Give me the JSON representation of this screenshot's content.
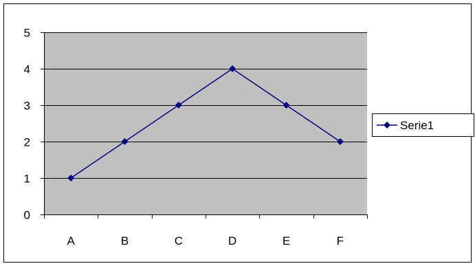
{
  "chart_data": {
    "type": "line",
    "categories": [
      "A",
      "B",
      "C",
      "D",
      "E",
      "F"
    ],
    "series": [
      {
        "name": "Serie1",
        "values": [
          1,
          2,
          3,
          4,
          3,
          2
        ]
      }
    ],
    "ylim": [
      0,
      5
    ],
    "yticks": [
      "0",
      "1",
      "2",
      "3",
      "4",
      "5"
    ],
    "grid": true,
    "legend": "right",
    "title": "",
    "xlabel": "",
    "ylabel": ""
  },
  "colors": {
    "series": "#000080",
    "plot_area": "#c0c0c0",
    "gridline": "#000000",
    "frame": "#000000"
  }
}
